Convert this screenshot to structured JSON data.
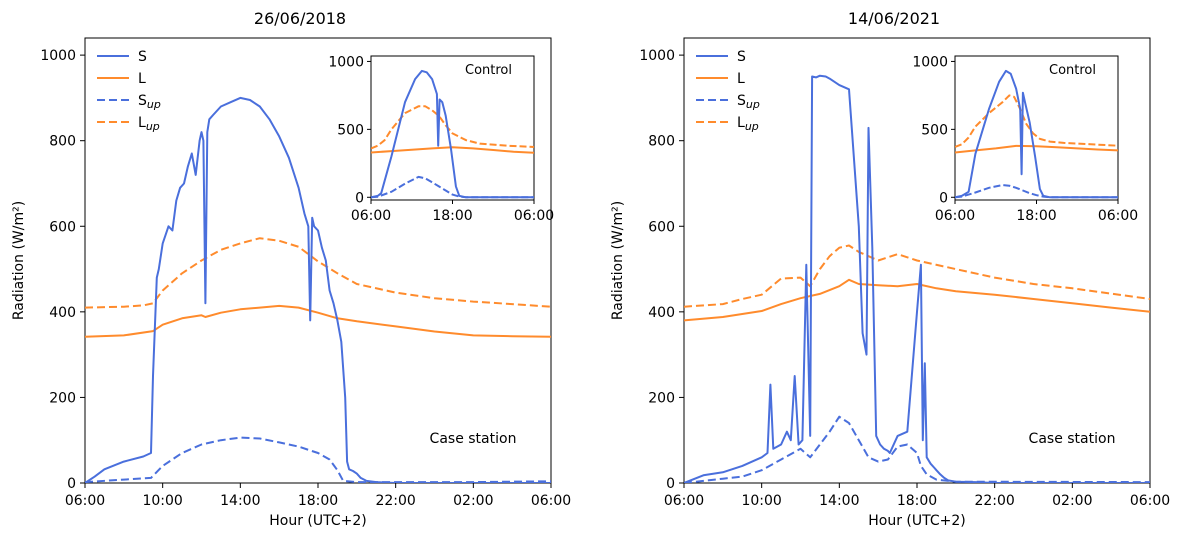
{
  "figure": {
    "background": "#ffffff"
  },
  "chart_data": [
    {
      "type": "line",
      "title": "26/06/2018",
      "xlabel": "Hour (UTC+2)",
      "ylabel": "Radiation (W/m²)",
      "x_unit": "hours since 06:00",
      "x_ticks": [
        "06:00",
        "10:00",
        "14:00",
        "18:00",
        "22:00",
        "02:00",
        "06:00"
      ],
      "xlim": [
        0,
        24
      ],
      "ylim": [
        0,
        1040
      ],
      "y_ticks": [
        0,
        200,
        400,
        600,
        800,
        1000
      ],
      "grid": false,
      "legend": {
        "position": "top-left",
        "entries": [
          {
            "label": "S",
            "sub": ""
          },
          {
            "label": "L",
            "sub": ""
          },
          {
            "label": "S",
            "sub": "up"
          },
          {
            "label": "L",
            "sub": "up"
          }
        ]
      },
      "annotation": "Case station",
      "series": [
        {
          "name": "S",
          "color": "#4a6fdc",
          "dash": "solid",
          "x": [
            0,
            0.5,
            1,
            2,
            3,
            3.4,
            3.5,
            3.7,
            3.8,
            4,
            4.3,
            4.5,
            4.7,
            4.9,
            5.1,
            5.3,
            5.5,
            5.7,
            5.9,
            6,
            6.1,
            6.2,
            6.3,
            6.4,
            6.6,
            7,
            7.5,
            8,
            8.5,
            9,
            9.5,
            10,
            10.5,
            11,
            11.3,
            11.5,
            11.6,
            11.7,
            11.8,
            12,
            12.2,
            12.4,
            12.6,
            12.8,
            13,
            13.2,
            13.4,
            13.5,
            13.6,
            13.8,
            14,
            14.2,
            14.5,
            15,
            16,
            18,
            24
          ],
          "values": [
            0,
            15,
            32,
            50,
            62,
            70,
            250,
            480,
            500,
            560,
            600,
            590,
            660,
            690,
            700,
            740,
            770,
            720,
            800,
            820,
            800,
            420,
            820,
            850,
            860,
            880,
            890,
            900,
            895,
            880,
            850,
            810,
            760,
            690,
            630,
            600,
            380,
            620,
            600,
            590,
            550,
            520,
            450,
            420,
            380,
            330,
            200,
            50,
            32,
            28,
            22,
            12,
            5,
            2,
            0,
            0,
            0
          ]
        },
        {
          "name": "L",
          "color": "#ff8b2c",
          "dash": "solid",
          "x": [
            0,
            2,
            3.5,
            4,
            5,
            6,
            6.2,
            7,
            8,
            9,
            10,
            11,
            12,
            13,
            14,
            16,
            18,
            20,
            22,
            24
          ],
          "values": [
            342,
            345,
            355,
            370,
            385,
            392,
            388,
            398,
            406,
            410,
            414,
            410,
            398,
            385,
            378,
            366,
            354,
            345,
            343,
            342
          ]
        },
        {
          "name": "S up",
          "color": "#4a6fdc",
          "dash": "dashed",
          "x": [
            0,
            2,
            3.4,
            4,
            5,
            6,
            7,
            8,
            9,
            10,
            11,
            12,
            12.6,
            13,
            13.3,
            14,
            16,
            18,
            20,
            22,
            24
          ],
          "values": [
            2,
            8,
            12,
            40,
            70,
            90,
            100,
            106,
            104,
            95,
            85,
            70,
            55,
            30,
            5,
            2,
            2,
            2,
            2,
            3,
            4
          ]
        },
        {
          "name": "L up",
          "color": "#ff8b2c",
          "dash": "dashed",
          "x": [
            0,
            2,
            3,
            3.5,
            4,
            5,
            6,
            7,
            8,
            9,
            10,
            11,
            12,
            13,
            14,
            16,
            18,
            20,
            22,
            24
          ],
          "values": [
            410,
            412,
            415,
            420,
            450,
            490,
            520,
            545,
            560,
            572,
            566,
            552,
            518,
            490,
            465,
            445,
            432,
            424,
            418,
            412
          ]
        }
      ],
      "inset": {
        "title": "Control",
        "xlim": [
          0,
          24
        ],
        "ylim": [
          -20,
          1040
        ],
        "x_ticks": [
          "06:00",
          "18:00",
          "06:00"
        ],
        "y_ticks": [
          0,
          500,
          1000
        ],
        "series": [
          {
            "name": "S",
            "color": "#4a6fdc",
            "dash": "solid",
            "x": [
              0,
              1,
              1.5,
              3,
              5,
              6.5,
              7.5,
              8.2,
              9,
              9.7,
              9.9,
              10.1,
              10.5,
              11,
              11.8,
              12.5,
              13,
              14,
              24
            ],
            "values": [
              0,
              10,
              30,
              300,
              700,
              870,
              930,
              920,
              870,
              760,
              380,
              720,
              700,
              600,
              350,
              80,
              10,
              0,
              0
            ]
          },
          {
            "name": "L",
            "color": "#ff8b2c",
            "dash": "solid",
            "x": [
              0,
              3,
              6,
              9,
              12,
              15,
              18,
              21,
              24
            ],
            "values": [
              330,
              340,
              350,
              360,
              368,
              360,
              348,
              335,
              328
            ]
          },
          {
            "name": "S up",
            "color": "#4a6fdc",
            "dash": "dashed",
            "x": [
              0,
              1,
              3,
              5,
              7,
              8,
              9,
              10,
              11,
              12,
              13,
              14,
              24
            ],
            "values": [
              0,
              4,
              40,
              100,
              150,
              140,
              110,
              80,
              50,
              20,
              5,
              0,
              0
            ]
          },
          {
            "name": "L up",
            "color": "#ff8b2c",
            "dash": "dashed",
            "x": [
              0,
              1,
              2,
              3,
              5,
              7,
              8,
              9,
              10,
              11,
              12,
              14,
              16,
              20,
              24
            ],
            "values": [
              360,
              380,
              420,
              500,
              620,
              670,
              670,
              640,
              600,
              530,
              470,
              420,
              395,
              380,
              370
            ]
          }
        ]
      }
    },
    {
      "type": "line",
      "title": "14/06/2021",
      "xlabel": "Hour (UTC+2)",
      "ylabel": "Radiation (W/m²)",
      "x_unit": "hours since 06:00",
      "x_ticks": [
        "06:00",
        "10:00",
        "14:00",
        "18:00",
        "22:00",
        "02:00",
        "06:00"
      ],
      "xlim": [
        0,
        24
      ],
      "ylim": [
        0,
        1040
      ],
      "y_ticks": [
        0,
        200,
        400,
        600,
        800,
        1000
      ],
      "grid": false,
      "legend": {
        "position": "top-left",
        "entries": [
          {
            "label": "S",
            "sub": ""
          },
          {
            "label": "L",
            "sub": ""
          },
          {
            "label": "S",
            "sub": "up"
          },
          {
            "label": "L",
            "sub": "up"
          }
        ]
      },
      "annotation": "Case station",
      "series": [
        {
          "name": "S",
          "color": "#4a6fdc",
          "dash": "solid",
          "x": [
            0,
            1,
            2,
            3,
            4,
            4.3,
            4.45,
            4.6,
            5,
            5.3,
            5.5,
            5.7,
            5.9,
            6.1,
            6.3,
            6.5,
            6.6,
            6.8,
            7,
            7.3,
            7.5,
            8,
            8.5,
            9,
            9.2,
            9.4,
            9.5,
            9.7,
            9.9,
            10.1,
            10.3,
            10.5,
            10.6,
            11,
            11.5,
            12,
            12.2,
            12.3,
            12.4,
            12.5,
            12.7,
            12.9,
            13,
            13.2,
            13.4,
            13.6,
            14,
            15,
            16,
            24
          ],
          "values": [
            0,
            18,
            25,
            40,
            60,
            70,
            230,
            80,
            90,
            120,
            100,
            250,
            90,
            100,
            510,
            110,
            950,
            948,
            952,
            950,
            945,
            930,
            920,
            600,
            350,
            300,
            830,
            550,
            110,
            90,
            80,
            75,
            70,
            110,
            120,
            400,
            510,
            100,
            280,
            60,
            45,
            35,
            30,
            20,
            12,
            6,
            3,
            2,
            0,
            0
          ]
        },
        {
          "name": "L",
          "color": "#ff8b2c",
          "dash": "solid",
          "x": [
            0,
            2,
            4,
            5,
            6,
            7,
            8,
            8.5,
            9,
            10,
            11,
            12,
            13,
            14,
            16,
            18,
            20,
            22,
            24
          ],
          "values": [
            380,
            388,
            402,
            418,
            432,
            442,
            460,
            475,
            465,
            462,
            460,
            465,
            455,
            448,
            440,
            430,
            420,
            410,
            400
          ]
        },
        {
          "name": "S up",
          "color": "#4a6fdc",
          "dash": "dashed",
          "x": [
            0,
            1,
            2,
            3,
            4,
            5,
            6,
            6.5,
            7,
            7.5,
            8,
            8.5,
            9,
            9.5,
            10,
            10.5,
            11,
            11.5,
            12,
            12.2,
            12.5,
            13,
            14,
            24
          ],
          "values": [
            0,
            5,
            10,
            15,
            30,
            55,
            80,
            60,
            90,
            120,
            155,
            140,
            100,
            60,
            50,
            55,
            85,
            90,
            70,
            40,
            20,
            8,
            3,
            2
          ]
        },
        {
          "name": "L up",
          "color": "#ff8b2c",
          "dash": "dashed",
          "x": [
            0,
            2,
            3,
            4,
            5,
            6,
            6.5,
            7,
            7.5,
            8,
            8.5,
            9,
            10,
            11,
            12,
            14,
            16,
            18,
            20,
            24
          ],
          "values": [
            412,
            418,
            430,
            440,
            478,
            480,
            460,
            500,
            530,
            550,
            555,
            540,
            520,
            535,
            520,
            500,
            480,
            465,
            455,
            430
          ]
        }
      ],
      "inset": {
        "title": "Control",
        "xlim": [
          0,
          24
        ],
        "ylim": [
          -20,
          1040
        ],
        "x_ticks": [
          "06:00",
          "18:00",
          "06:00"
        ],
        "y_ticks": [
          0,
          500,
          1000
        ],
        "series": [
          {
            "name": "S",
            "color": "#4a6fdc",
            "dash": "solid",
            "x": [
              0,
              1,
              2,
              3,
              5,
              6.5,
              7.5,
              8.2,
              9,
              9.6,
              9.8,
              10,
              10.3,
              11,
              11.8,
              12.5,
              13,
              14,
              24
            ],
            "values": [
              0,
              10,
              40,
              320,
              650,
              850,
              930,
              910,
              800,
              650,
              170,
              770,
              700,
              550,
              300,
              60,
              10,
              0,
              0
            ]
          },
          {
            "name": "L",
            "color": "#ff8b2c",
            "dash": "solid",
            "x": [
              0,
              3,
              6,
              9,
              12,
              15,
              18,
              21,
              24
            ],
            "values": [
              330,
              345,
              360,
              378,
              375,
              368,
              360,
              352,
              345
            ]
          },
          {
            "name": "S up",
            "color": "#4a6fdc",
            "dash": "dashed",
            "x": [
              0,
              1,
              3,
              5,
              7,
              8,
              9,
              10,
              11,
              12,
              13,
              14,
              24
            ],
            "values": [
              0,
              5,
              35,
              70,
              90,
              85,
              70,
              50,
              30,
              15,
              5,
              0,
              0
            ]
          },
          {
            "name": "L up",
            "color": "#ff8b2c",
            "dash": "dashed",
            "x": [
              0,
              1,
              2,
              3,
              5,
              7,
              8,
              8.7,
              9.5,
              10.5,
              11.5,
              12.5,
              14,
              16,
              20,
              24
            ],
            "values": [
              370,
              390,
              440,
              520,
              620,
              700,
              750,
              740,
              660,
              540,
              470,
              430,
              410,
              400,
              390,
              380
            ]
          }
        ]
      }
    }
  ]
}
